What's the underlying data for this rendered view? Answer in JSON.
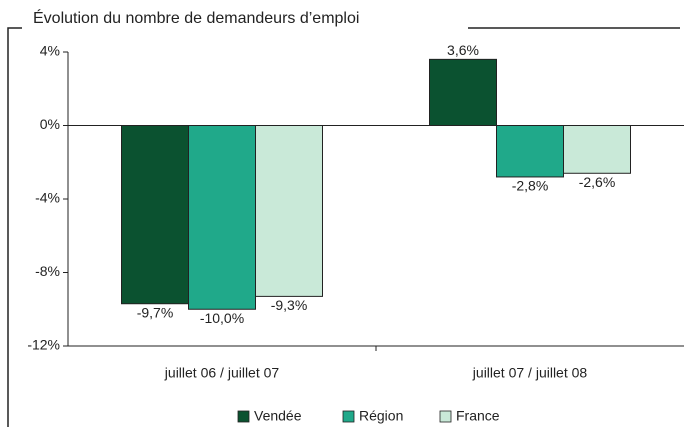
{
  "chart_data": {
    "type": "bar",
    "title": "Évolution du nombre de demandeurs d’emploi",
    "categories": [
      "juillet 06 / juillet 07",
      "juillet 07 / juillet 08"
    ],
    "series": [
      {
        "name": "Vendée",
        "color": "#0b5230",
        "values": [
          -9.7,
          3.6
        ],
        "value_labels": [
          "-9,7%",
          "3,6%"
        ]
      },
      {
        "name": "Région",
        "color": "#20a98a",
        "values": [
          -10.0,
          -2.8
        ],
        "value_labels": [
          "-10,0%",
          "-2,8%"
        ]
      },
      {
        "name": "France",
        "color": "#c9e9d8",
        "values": [
          -9.3,
          -2.6
        ],
        "value_labels": [
          "-9,3%",
          "-2,6%"
        ]
      }
    ],
    "ylim": [
      -12,
      4
    ],
    "yticks": [
      {
        "value": 4,
        "label": "4%"
      },
      {
        "value": 0,
        "label": "0%"
      },
      {
        "value": -4,
        "label": "-4%"
      },
      {
        "value": -8,
        "label": "-8%"
      },
      {
        "value": -12,
        "label": "-12%"
      }
    ],
    "legend": "bottom"
  }
}
